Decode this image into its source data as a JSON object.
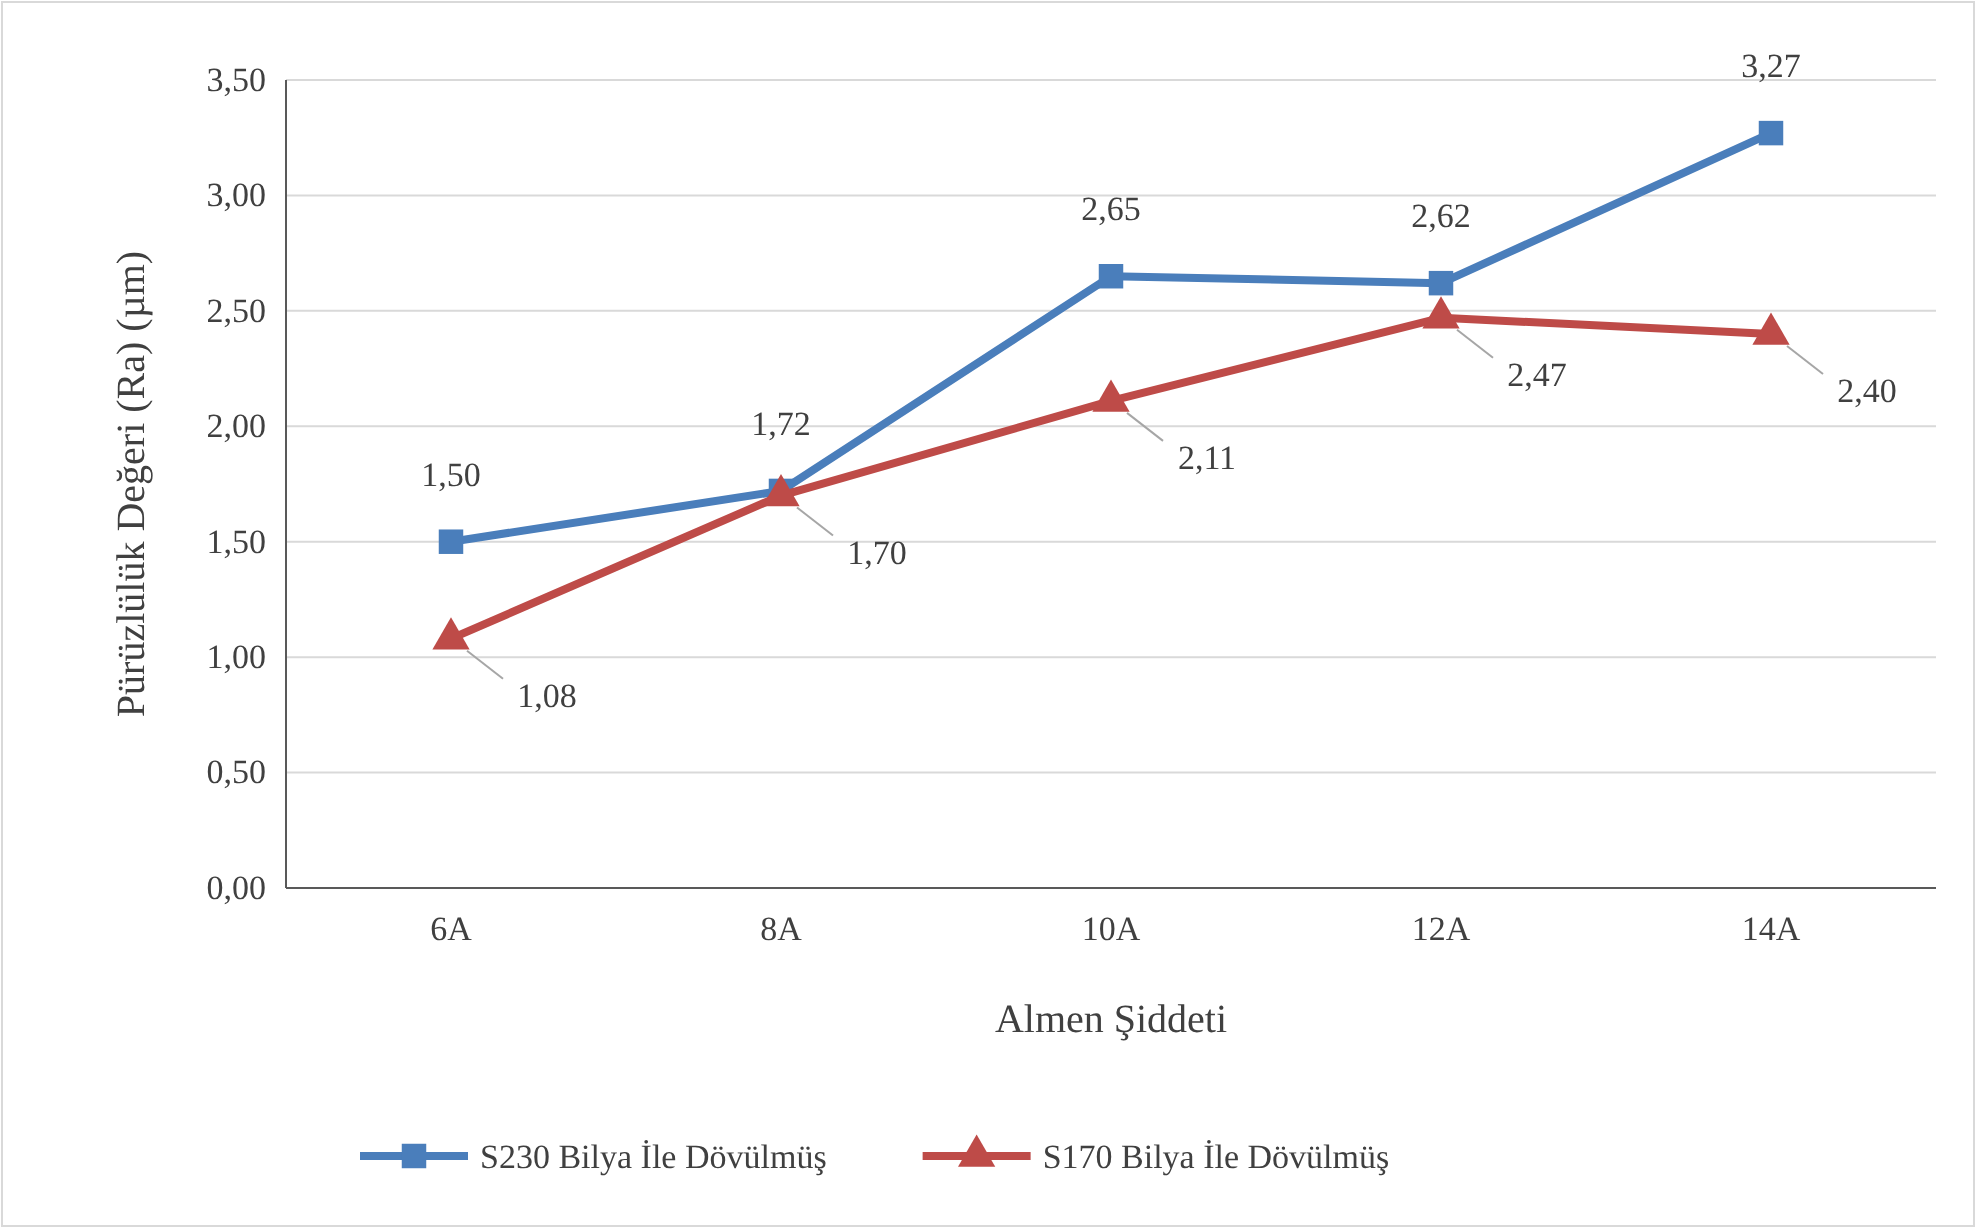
{
  "chart_data": {
    "type": "line",
    "xlabel": "Almen Şiddeti",
    "ylabel": "Pürüzlülük Değeri (Ra) (µm)",
    "categories": [
      "6A",
      "8A",
      "10A",
      "12A",
      "14A"
    ],
    "series": [
      {
        "name": "S230 Bilya İle Dövülmüş",
        "color": "#4a7ebb",
        "marker": "square",
        "values": [
          1.5,
          1.72,
          2.65,
          2.62,
          3.27
        ],
        "value_labels": [
          "1,50",
          "1,72",
          "2,65",
          "2,62",
          "3,27"
        ]
      },
      {
        "name": "S170 Bilya İle Dövülmüş",
        "color": "#be4b48",
        "marker": "triangle",
        "values": [
          1.08,
          1.7,
          2.11,
          2.47,
          2.4
        ],
        "value_labels": [
          "1,08",
          "1,70",
          "2,11",
          "2,47",
          "2,40"
        ]
      }
    ],
    "ylim": [
      0,
      3.5
    ],
    "yticks": [
      {
        "value": 0,
        "label": "0,00"
      },
      {
        "value": 0.5,
        "label": "0,50"
      },
      {
        "value": 1,
        "label": "1,00"
      },
      {
        "value": 1.5,
        "label": "1,50"
      },
      {
        "value": 2,
        "label": "2,00"
      },
      {
        "value": 2.5,
        "label": "2,50"
      },
      {
        "value": 3,
        "label": "3,00"
      },
      {
        "value": 3.5,
        "label": "3,50"
      }
    ],
    "grid": "y",
    "legend": "bottom",
    "line_style": "solid"
  }
}
